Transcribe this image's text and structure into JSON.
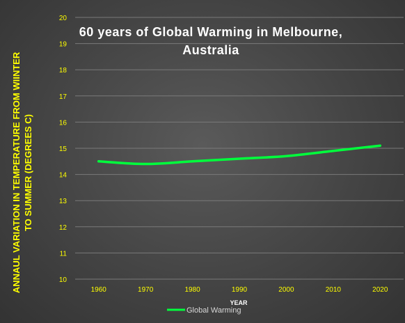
{
  "chart_data": {
    "type": "line",
    "title_lines": [
      "60 years  of  Global  Warming  in  Melbourne,",
      "Australia"
    ],
    "xlabel": "YEAR",
    "ylabel_lines": [
      "ANNAUL VARIATION IN TEMPERATURE FROM WIINTER",
      "TO SUMMER (DEGREES C)"
    ],
    "categories": [
      "1960",
      "1970",
      "1980",
      "1990",
      "2000",
      "2010",
      "2020"
    ],
    "series": [
      {
        "name": "Global Warming",
        "values": [
          14.5,
          14.4,
          14.5,
          14.6,
          14.7,
          14.9,
          15.1
        ]
      }
    ],
    "ylim": [
      10,
      20
    ],
    "yticks": [
      "10",
      "11",
      "12",
      "13",
      "14",
      "15",
      "16",
      "17",
      "18",
      "19",
      "20"
    ],
    "grid": true,
    "legend": "bottom",
    "colors": {
      "line": "#00ff3c",
      "ticks": "#ffff00",
      "title": "#ffffff"
    }
  }
}
